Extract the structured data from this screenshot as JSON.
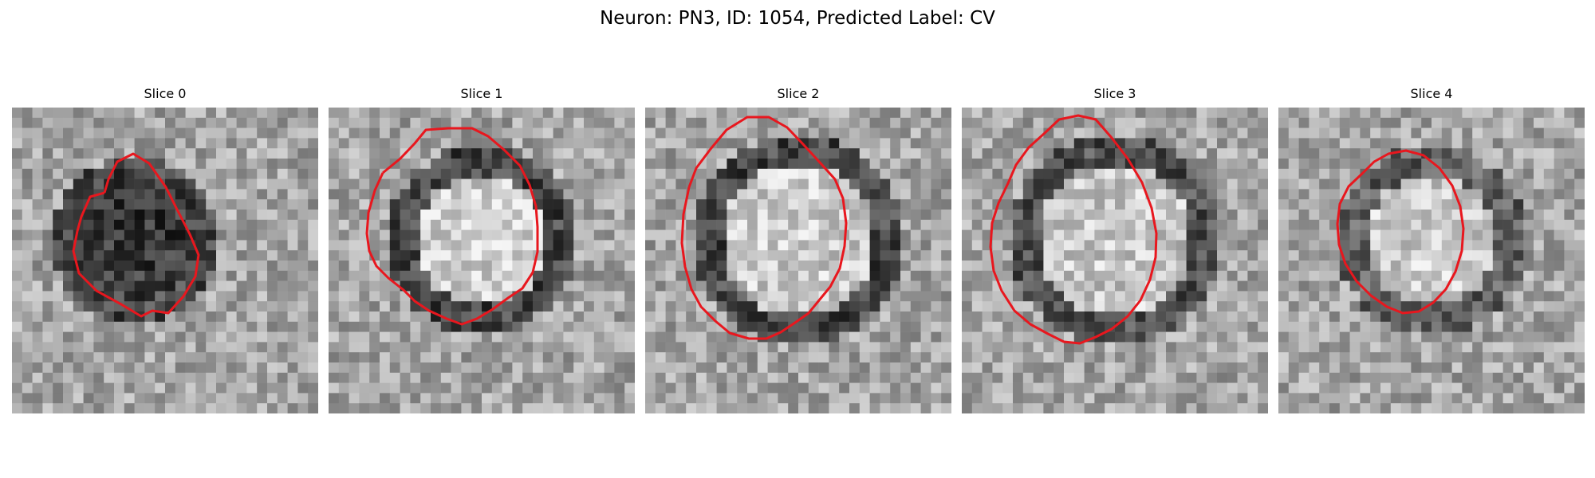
{
  "figure": {
    "title": "Neuron: PN3, ID: 1054, Predicted Label: CV"
  },
  "panels": [
    {
      "title": "Slice 0"
    },
    {
      "title": "Slice 1"
    },
    {
      "title": "Slice 2"
    },
    {
      "title": "Slice 3"
    },
    {
      "title": "Slice 4"
    }
  ],
  "colors": {
    "contour": "#e8171e",
    "background": "#ffffff"
  }
}
